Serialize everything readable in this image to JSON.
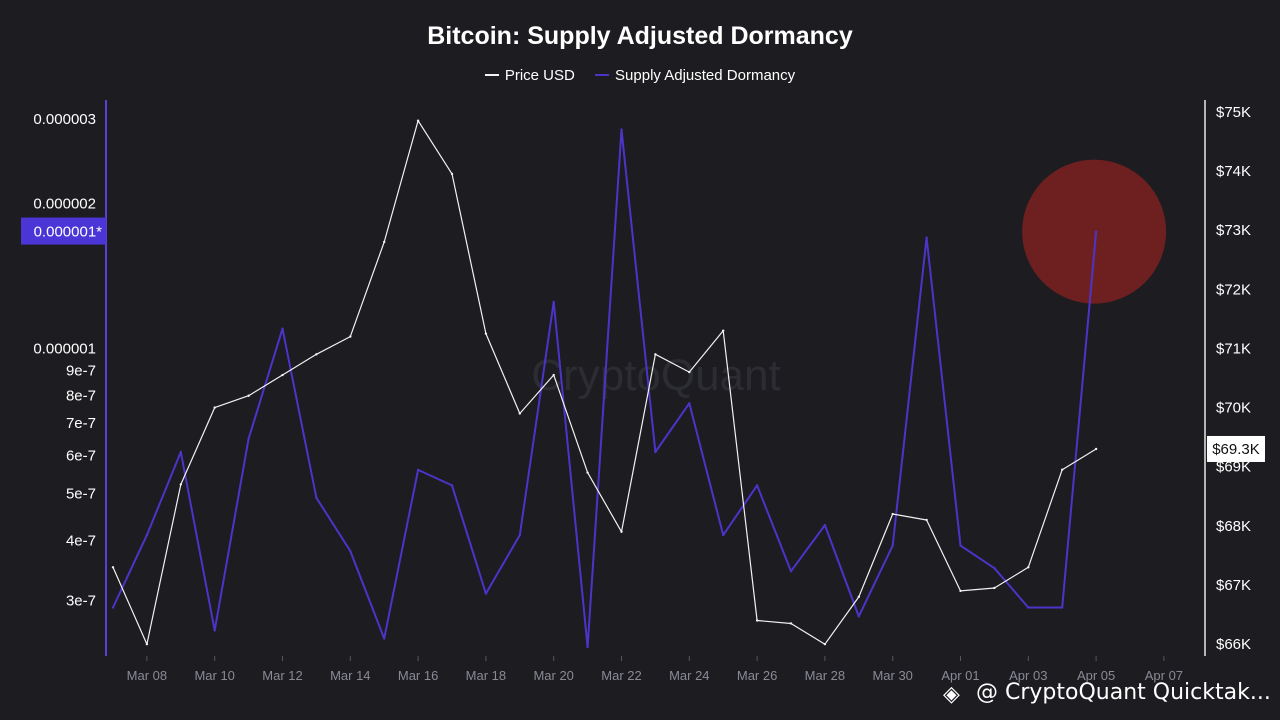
{
  "colors": {
    "background": "#1c1c21",
    "price": "#f2f2f2",
    "dormancy": "#4b35c9",
    "highlight": "#8a2222",
    "axis_left": "#5a3fd6",
    "text": "#ffffff",
    "tick_text": "#8a8a95"
  },
  "chart_data": {
    "type": "line",
    "title": "Bitcoin: Supply Adjusted Dormancy",
    "legend": [
      "Price USD",
      "Supply Adjusted Dormancy"
    ],
    "x": [
      "Mar 07",
      "Mar 08",
      "Mar 09",
      "Mar 10",
      "Mar 11",
      "Mar 12",
      "Mar 13",
      "Mar 14",
      "Mar 15",
      "Mar 16",
      "Mar 17",
      "Mar 18",
      "Mar 19",
      "Mar 20",
      "Mar 21",
      "Mar 22",
      "Mar 23",
      "Mar 24",
      "Mar 25",
      "Mar 26",
      "Mar 27",
      "Mar 28",
      "Mar 29",
      "Mar 30",
      "Mar 31",
      "Apr 01",
      "Apr 02",
      "Apr 03",
      "Apr 04",
      "Apr 05",
      "Apr 06"
    ],
    "x_tick_labels": [
      "Mar 08",
      "Mar 10",
      "Mar 12",
      "Mar 14",
      "Mar 16",
      "Mar 18",
      "Mar 20",
      "Mar 22",
      "Mar 24",
      "Mar 26",
      "Mar 28",
      "Mar 30",
      "Apr 01",
      "Apr 03",
      "Apr 05",
      "Apr 07"
    ],
    "x_range": [
      "Mar 07",
      "Apr 08"
    ],
    "series": [
      {
        "name": "Price USD",
        "axis": "right",
        "values": [
          67300,
          66000,
          68700,
          70000,
          70200,
          70550,
          70900,
          71200,
          72800,
          74850,
          73950,
          71250,
          69900,
          70550,
          68900,
          67900,
          70900,
          70600,
          71300,
          66400,
          66350,
          66000,
          66800,
          68200,
          68100,
          66900,
          66950,
          67300,
          68950,
          69300,
          null
        ]
      },
      {
        "name": "Supply Adjusted Dormancy",
        "axis": "left",
        "values": [
          2.9e-07,
          4.1e-07,
          6.1e-07,
          2.6e-07,
          6.5e-07,
          1.1e-06,
          4.9e-07,
          3.8e-07,
          2.5e-07,
          5.6e-07,
          5.2e-07,
          3.1e-07,
          4.1e-07,
          1.25e-06,
          2.4e-07,
          2.85e-06,
          6.1e-07,
          7.7e-07,
          4.1e-07,
          5.2e-07,
          3.45e-07,
          4.3e-07,
          2.78e-07,
          3.9e-07,
          1.7e-06,
          3.9e-07,
          3.5e-07,
          2.9e-07,
          2.9e-07,
          1.75e-06,
          null
        ]
      }
    ],
    "y_left": {
      "scale": "log",
      "range": [
        2.3e-07,
        3.1e-06
      ],
      "ticks": [
        "3e-7",
        "4e-7",
        "5e-7",
        "6e-7",
        "7e-7",
        "8e-7",
        "9e-7",
        "0.000001",
        "0.000002",
        "0.000003"
      ],
      "highlight_label": "0.000001*"
    },
    "y_right": {
      "range": [
        65800,
        75200
      ],
      "ticks": [
        "$66K",
        "$67K",
        "$68K",
        "$69K",
        "$70K",
        "$71K",
        "$72K",
        "$73K",
        "$74K",
        "$75K"
      ],
      "current_label": "$69.3K",
      "current_value": 69300
    },
    "annotation": "red circle highlighting Apr 05 dormancy spike",
    "watermark_center": "CryptoQuant"
  },
  "watermark": {
    "text": "@ CryptoQuant Quicktak...",
    "logo_icon": "binance-logo-icon"
  }
}
